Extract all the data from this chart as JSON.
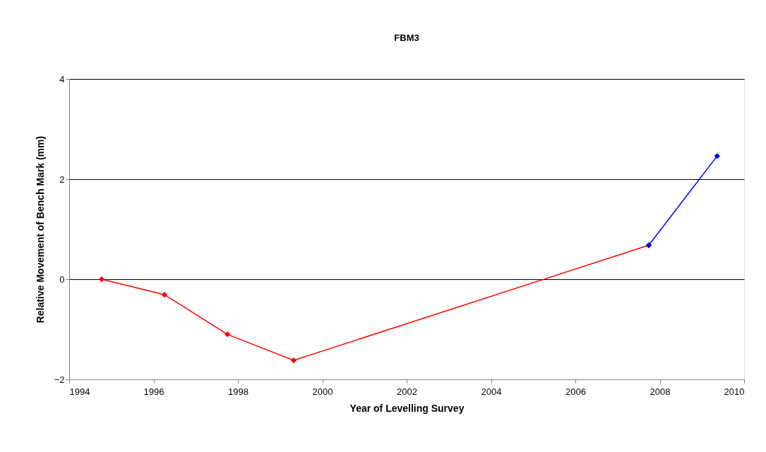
{
  "chart_data": {
    "type": "line",
    "title": "FBM3",
    "xlabel": "Year of Levelling Survey",
    "ylabel": "Relative Movement of Bench Mark (mm)",
    "series": [
      {
        "color": "#ff0000",
        "x": [
          1994.77,
          1996.26,
          1997.75,
          1999.32,
          2007.74
        ],
        "values": [
          0,
          -0.31,
          -1.1,
          -1.62,
          0.68
        ]
      },
      {
        "color": "#0000ff",
        "x": [
          2007.74,
          2009.36
        ],
        "values": [
          0.68,
          2.46
        ]
      }
    ],
    "xlim": [
      1994,
      2010
    ],
    "xticks": [
      1994,
      1996,
      1998,
      2000,
      2002,
      2004,
      2006,
      2008,
      2010
    ],
    "ylim": [
      -2,
      4
    ],
    "yticks": [
      -2,
      0,
      2,
      4
    ],
    "grid": "y",
    "marker": "diamond",
    "line_style": "solid"
  }
}
